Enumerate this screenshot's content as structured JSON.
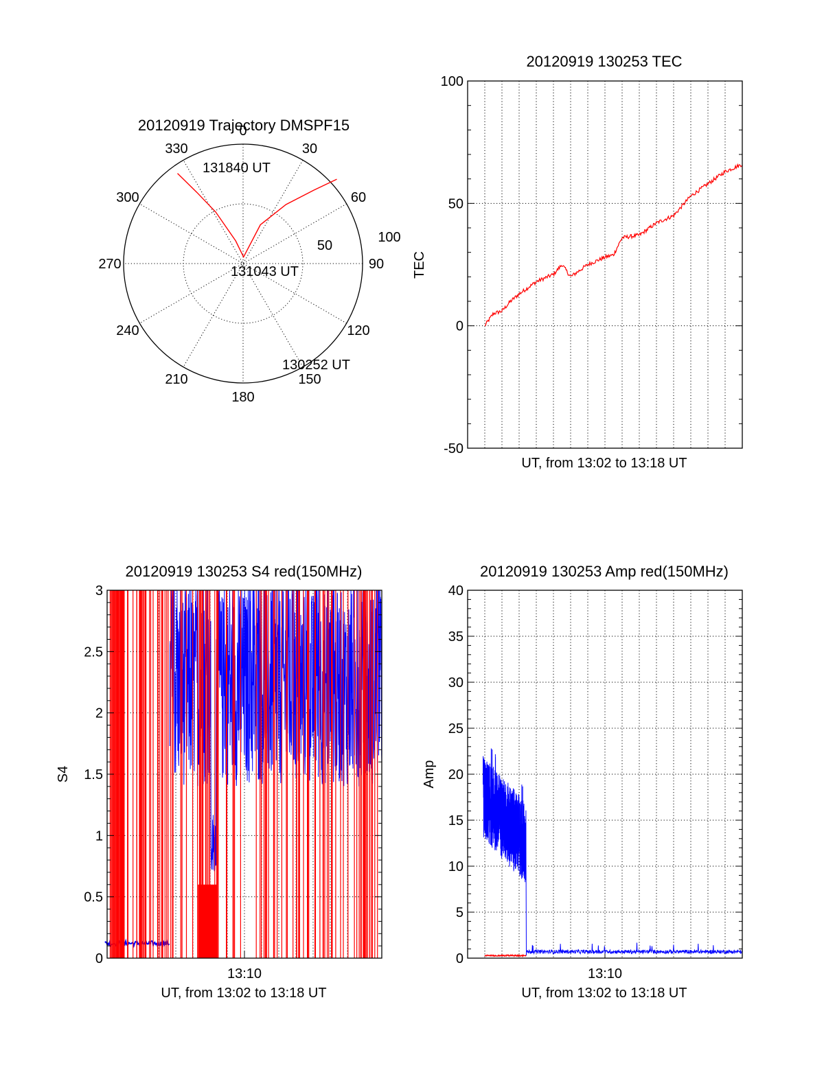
{
  "colors": {
    "red": "#ff0000",
    "blue": "#0000ff",
    "axis": "#000000"
  },
  "chart_data": [
    {
      "type": "polar",
      "title": "20120919 Trajectory DMSPF15",
      "angle_labels": [
        "0",
        "30",
        "60",
        "90",
        "120",
        "150",
        "180",
        "210",
        "240",
        "270",
        "300",
        "330"
      ],
      "angle_values": [
        0,
        30,
        60,
        90,
        120,
        150,
        180,
        210,
        240,
        270,
        300,
        330
      ],
      "radius_labels": [
        "50",
        "100"
      ],
      "radius_values": [
        50,
        100
      ],
      "zenith_range": [
        0,
        90
      ],
      "series": [
        {
          "color": "red",
          "points": [
            [
              -36,
              84
            ],
            [
              -33,
              64
            ],
            [
              -28,
              44
            ],
            [
              -18,
              18
            ],
            [
              4,
              5
            ],
            [
              24,
              32
            ],
            [
              36,
              55
            ],
            [
              44,
              77
            ],
            [
              48,
              95
            ]
          ]
        }
      ],
      "annotations": [
        {
          "text": "131840 UT"
        },
        {
          "text": "131043 UT"
        },
        {
          "text": "130252 UT"
        }
      ]
    },
    {
      "type": "line",
      "title": "20120919 130253 TEC",
      "xlabel": "UT, from 13:02 to 13:18 UT",
      "ylabel": "TEC",
      "ylim": [
        -50,
        100
      ],
      "yticks": [
        -50,
        0,
        50,
        100
      ],
      "xlim": [
        "13:02",
        "13:18"
      ],
      "series": [
        {
          "color": "red",
          "x": [
            "13:03",
            "13:03:30",
            "13:04",
            "13:04:30",
            "13:05",
            "13:06",
            "13:07",
            "13:07:30",
            "13:08",
            "13:09",
            "13:10",
            "13:10:30",
            "13:11",
            "13:12",
            "13:13",
            "13:14",
            "13:15",
            "13:16",
            "13:17",
            "13:18"
          ],
          "values": [
            0,
            5,
            6,
            10,
            13,
            18,
            21,
            25,
            20,
            25,
            28,
            29,
            36,
            37,
            42,
            45,
            53,
            58,
            63,
            66
          ]
        }
      ]
    },
    {
      "type": "line",
      "title": "20120919 130253 S4 red(150MHz)",
      "xlabel": "UT, from 13:02 to 13:18 UT",
      "ylabel": "S4",
      "xtick_label": "13:10",
      "ylim": [
        0,
        3
      ],
      "yticks": [
        0,
        0.5,
        1,
        1.5,
        2,
        2.5,
        3
      ],
      "series": [
        {
          "color": "red",
          "note_values": "vertical spikes from 0 to 3 across 13:02-13:18"
        },
        {
          "color": "blue",
          "segments": [
            {
              "from": "13:02",
              "to": "13:06",
              "level": 0.12
            },
            {
              "from": "13:06",
              "to": "13:18",
              "range": [
                0.7,
                3
              ]
            }
          ]
        }
      ]
    },
    {
      "type": "line",
      "title": "20120919 130253 Amp red(150MHz)",
      "xlabel": "UT, from 13:02 to 13:18 UT",
      "ylabel": "Amp",
      "xtick_label": "13:10",
      "ylim": [
        0,
        40
      ],
      "yticks": [
        0,
        5,
        10,
        15,
        20,
        25,
        30,
        35,
        40
      ],
      "series": [
        {
          "color": "blue",
          "segments": [
            {
              "from": "13:02",
              "to": "13:06",
              "range": [
                7,
                23
              ]
            },
            {
              "from": "13:06",
              "to": "13:18",
              "level": 0.5
            }
          ]
        },
        {
          "color": "red",
          "segments": [
            {
              "from": "13:02",
              "to": "13:06",
              "level": 0.2
            }
          ]
        }
      ]
    }
  ]
}
